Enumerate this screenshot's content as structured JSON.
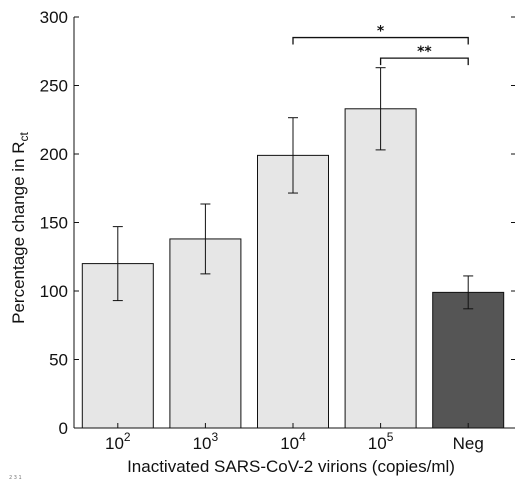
{
  "corner_note": "2 3 1",
  "chart_data": {
    "type": "bar",
    "categories": [
      {
        "base": "10",
        "exp": "2"
      },
      {
        "base": "10",
        "exp": "3"
      },
      {
        "base": "10",
        "exp": "4"
      },
      {
        "base": "10",
        "exp": "5"
      },
      {
        "base": "Neg",
        "exp": ""
      }
    ],
    "values": [
      120,
      138,
      199,
      233,
      99
    ],
    "error": [
      27,
      25.5,
      27.5,
      30,
      12
    ],
    "bar_colors": [
      "#e6e6e6",
      "#e6e6e6",
      "#e6e6e6",
      "#e6e6e6",
      "#555555"
    ],
    "xlabel": "Inactivated SARS-CoV-2 virions (copies/ml)",
    "ylabel": {
      "text": "Percentage change in R",
      "sub": "ct"
    },
    "ylim": [
      0,
      300
    ],
    "yticks": [
      0,
      50,
      100,
      150,
      200,
      250,
      300
    ],
    "grid": false,
    "significance": [
      {
        "from": 2,
        "to": 4,
        "label": "*",
        "y": 285
      },
      {
        "from": 3,
        "to": 4,
        "label": "**",
        "y": 270
      }
    ]
  }
}
